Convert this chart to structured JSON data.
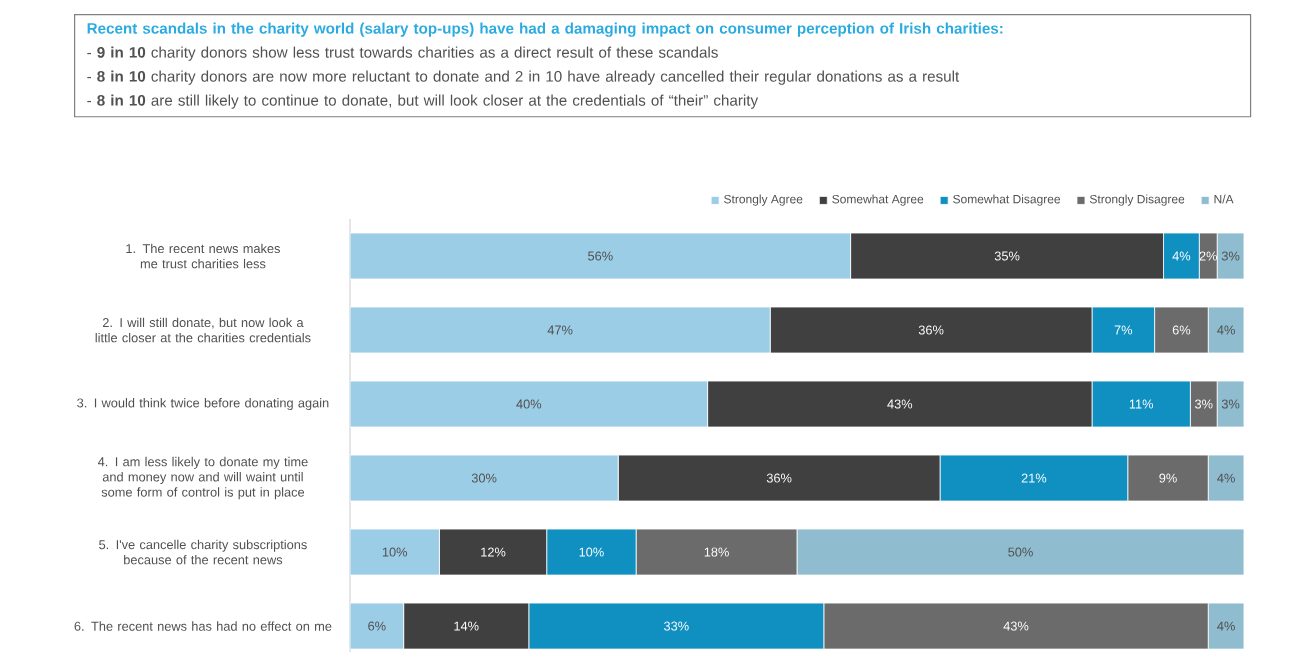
{
  "chart_data": {
    "type": "bar",
    "orientation": "horizontal",
    "stacked": true,
    "title": "Recent scandals in the charity world (salary top-ups) have had a damaging impact on consumer perception of Irish charities:",
    "annotations": [
      "- **9 in 10** charity donors show less trust towards charities as a direct result of these scandals",
      "- **8 in 10** charity donors are now more reluctant to donate and 2 in 10 have already cancelled their regular donations as a result",
      "- **8 in 10** are still likely to continue to donate, but will look closer at the credentials of “their” charity"
    ],
    "categories": [
      "1. The recent news makes me trust charities less",
      "2. I will still donate, but now look a little closer at the charities credentials",
      "3. I would think twice before donating again",
      "4. I am less likely to donate my time and money now and will waint until some form of control is put in place",
      "5. I've cancelle charity subscriptions because of the recent news",
      "6. The recent news has had no effect on me"
    ],
    "xlim": [
      0,
      100
    ],
    "legend": "top right",
    "series": [
      {
        "name": "Strongly Agree",
        "color": "#9ccde6",
        "values": [
          56,
          47,
          40,
          30,
          10,
          6
        ],
        "value_labels": [
          "56%",
          "47%",
          "40%",
          "30%",
          "10%",
          "6%"
        ]
      },
      {
        "name": "Somewhat Agree",
        "color": "#404040",
        "values": [
          35,
          36,
          43,
          36,
          12,
          14
        ],
        "value_labels": [
          "35%",
          "36%",
          "43%",
          "36%",
          "12%",
          "14%"
        ]
      },
      {
        "name": "Somewhat Disagree",
        "color": "#1090c0",
        "values": [
          4,
          7,
          11,
          21,
          10,
          33
        ],
        "value_labels": [
          "4%",
          "7%",
          "11%",
          "21%",
          "10%",
          "33%"
        ]
      },
      {
        "name": "Strongly Disagree",
        "color": "#6b6b6b",
        "values": [
          2,
          6,
          3,
          9,
          18,
          43
        ],
        "value_labels": [
          "2%",
          "6%",
          "3%",
          "9%",
          "18%",
          "43%"
        ]
      },
      {
        "name": "N/A",
        "color": "#8fbccf",
        "values": [
          3,
          4,
          3,
          4,
          50,
          4
        ],
        "value_labels": [
          "3%",
          "4%",
          "3%",
          "4%",
          "50%",
          "4%"
        ]
      }
    ]
  }
}
